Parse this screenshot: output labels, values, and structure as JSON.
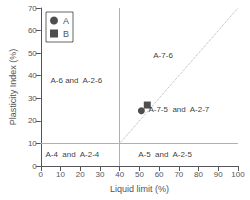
{
  "chart_data": {
    "type": "scatter",
    "xlabel": "Liquid limit (%)",
    "ylabel": "Plasticity Index (%)",
    "xlim": [
      0,
      100
    ],
    "ylim": [
      0,
      70
    ],
    "xticks": [
      0,
      10,
      20,
      30,
      40,
      50,
      60,
      70,
      80,
      90,
      100
    ],
    "yticks": [
      0,
      10,
      20,
      30,
      40,
      50,
      60,
      70
    ],
    "grid": false,
    "legend": "upper left",
    "series": [
      {
        "name": "A",
        "type": "scatter",
        "x": [
          51
        ],
        "values": [
          24.5
        ],
        "color": "#222222",
        "marker": "circle"
      },
      {
        "name": "B",
        "type": "scatter",
        "x": [
          54
        ],
        "values": [
          27
        ],
        "color": "#222222",
        "marker": "square"
      },
      {
        "type": "line",
        "x": [
          40,
          100
        ],
        "values": [
          10,
          70
        ],
        "color": "#b0b0b0",
        "line_style": "dotted"
      }
    ],
    "vertical_lines": [
      {
        "x": 40,
        "color": "#b0b0b0"
      }
    ],
    "horizontal_lines": [
      {
        "y": 10,
        "color": "#b0b0b0"
      }
    ],
    "annotations": [
      {
        "text": "A-6 and  A-2-6",
        "x": 18,
        "y": 38
      },
      {
        "text": "A-7-6",
        "x": 62,
        "y": 49
      },
      {
        "text": "A-7-5  and  A-2-7",
        "x": 70,
        "y": 25
      },
      {
        "text": "A-5  and  A-2-5",
        "x": 63,
        "y": 5
      },
      {
        "text": "A-4  and  A-2-4",
        "x": 16,
        "y": 5
      }
    ]
  }
}
